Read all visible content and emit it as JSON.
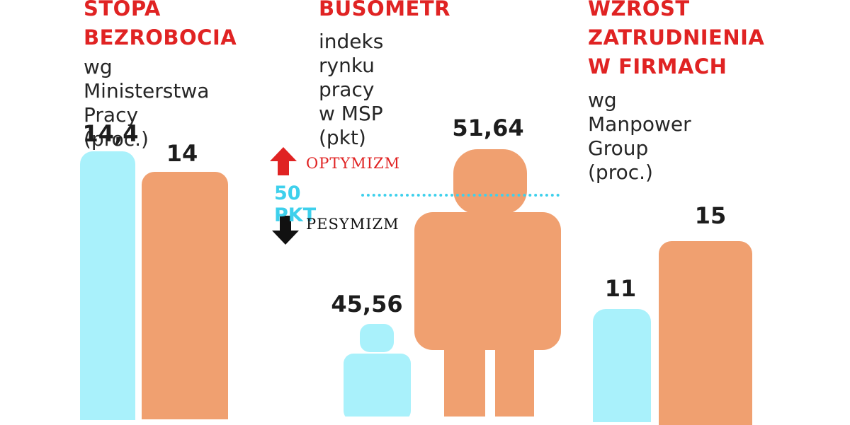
{
  "colors": {
    "red": "#e02323",
    "cyan": "#a9f1fb",
    "orange": "#f0a070",
    "dots": "#3ed0ec",
    "dark": "#1d1d1d"
  },
  "chart_data": [
    {
      "type": "bar",
      "title": "STOPA\nBEZROBOCIA",
      "subtitle": "wg Ministerstwa\nPracy (proc.)",
      "values": [
        14.4,
        14
      ],
      "value_labels": [
        "14,4",
        "14"
      ],
      "colors": [
        "#a9f1fb",
        "#f0a070"
      ]
    },
    {
      "type": "bar",
      "title": "BUSOMETR",
      "subtitle": "indeks rynku\npracy w MSP\n(pkt)",
      "values": [
        45.56,
        51.64
      ],
      "value_labels": [
        "45,56",
        "51,64"
      ],
      "colors": [
        "#a9f1fb",
        "#f0a070"
      ],
      "reference_line": {
        "value": 50,
        "label": "50 PKT"
      },
      "annotations": {
        "up": "OPTYMIZM",
        "down": "PESYMIZM"
      }
    },
    {
      "type": "bar",
      "title": "WZROST\nZATRUDNIENIA\nW FIRMACH",
      "subtitle": "wg Manpower\nGroup (proc.)",
      "values": [
        11,
        15
      ],
      "value_labels": [
        "11",
        "15"
      ],
      "colors": [
        "#a9f1fb",
        "#f0a070"
      ]
    }
  ]
}
